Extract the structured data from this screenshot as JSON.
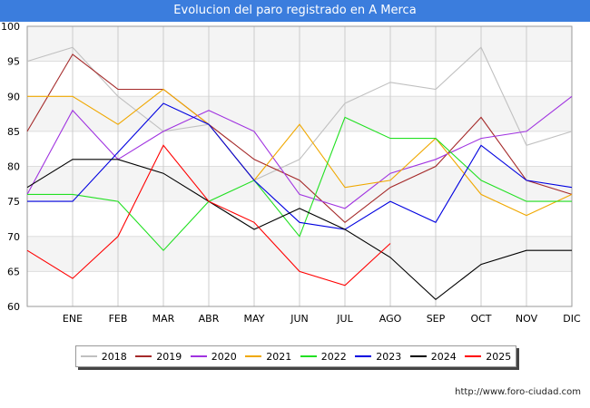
{
  "chart_data": {
    "type": "line",
    "title": "Evolucion del paro registrado en A Merca",
    "categories": [
      "",
      "ENE",
      "FEB",
      "MAR",
      "ABR",
      "MAY",
      "JUN",
      "JUL",
      "AGO",
      "SEP",
      "OCT",
      "NOV",
      "DIC"
    ],
    "ylim": [
      60,
      100
    ],
    "yticks": [
      60,
      65,
      70,
      75,
      80,
      85,
      90,
      95,
      100
    ],
    "grid": true,
    "legend_position": "bottom",
    "series": [
      {
        "name": "2018",
        "color": "#c0c0c0",
        "values": [
          95,
          97,
          90,
          85,
          86,
          78,
          81,
          89,
          92,
          91,
          97,
          83,
          85
        ]
      },
      {
        "name": "2019",
        "color": "#a52a2a",
        "values": [
          85,
          96,
          91,
          91,
          86,
          81,
          78,
          72,
          77,
          80,
          87,
          78,
          76
        ]
      },
      {
        "name": "2020",
        "color": "#a033e0",
        "values": [
          76,
          88,
          81,
          85,
          88,
          85,
          76,
          74,
          79,
          81,
          84,
          85,
          90
        ]
      },
      {
        "name": "2021",
        "color": "#f0a800",
        "values": [
          90,
          90,
          86,
          91,
          86,
          78,
          86,
          77,
          78,
          84,
          76,
          73,
          76
        ]
      },
      {
        "name": "2022",
        "color": "#22e022",
        "values": [
          76,
          76,
          75,
          68,
          75,
          78,
          70,
          87,
          84,
          84,
          78,
          75,
          75
        ]
      },
      {
        "name": "2023",
        "color": "#0000e0",
        "values": [
          75,
          75,
          82,
          89,
          86,
          78,
          72,
          71,
          75,
          72,
          83,
          78,
          77
        ]
      },
      {
        "name": "2024",
        "color": "#000000",
        "values": [
          77,
          81,
          81,
          79,
          75,
          71,
          74,
          71,
          67,
          61,
          66,
          68,
          68
        ]
      },
      {
        "name": "2025",
        "color": "#ff0000",
        "values": [
          68,
          64,
          70,
          83,
          75,
          72,
          65,
          63,
          69,
          null,
          null,
          null,
          null
        ]
      }
    ]
  },
  "source": "http://www.foro-ciudad.com"
}
